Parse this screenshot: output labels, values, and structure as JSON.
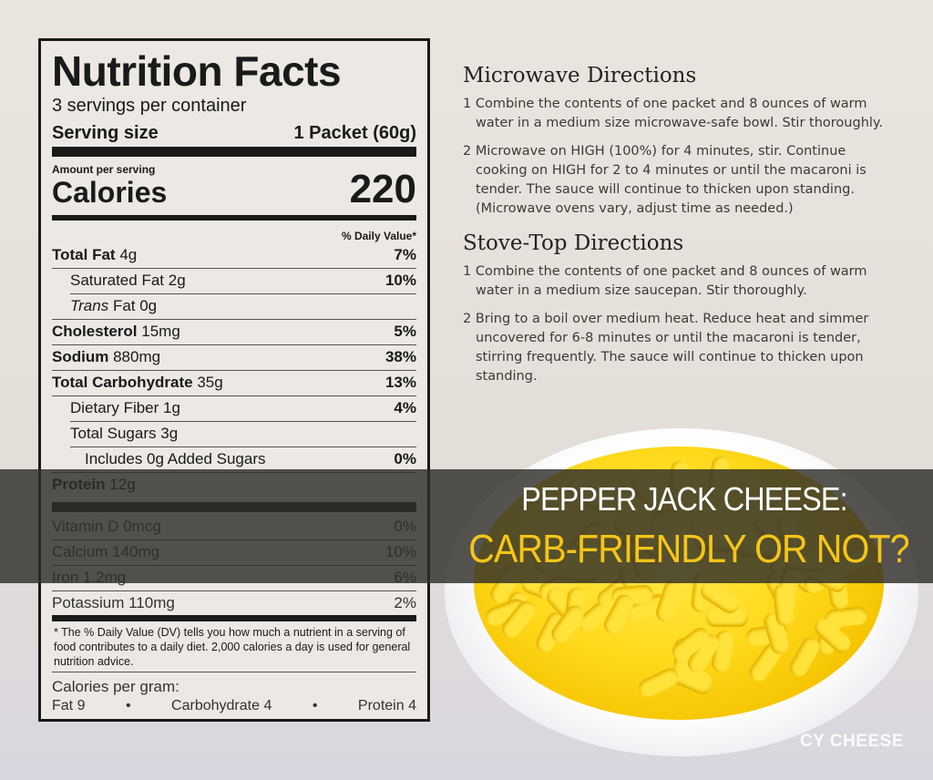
{
  "title": {
    "line1": "PEPPER JACK CHEESE:",
    "line2": "CARB-FRIENDLY OR NOT?"
  },
  "colors": {
    "title_line1": "#ffffff",
    "title_line2": "#f5c518",
    "overlay": "#302e2a"
  },
  "watermark": "CY CHEESE",
  "label": {
    "heading": "Nutrition Facts",
    "servings": "3 servings per container",
    "serving_size_label": "Serving size",
    "serving_size_value": "1 Packet (60g)",
    "amount_per_serving": "Amount per serving",
    "calories_label": "Calories",
    "calories_value": "220",
    "dv_header": "% Daily Value*",
    "rows": [
      {
        "name": "Total Fat",
        "amount": "4g",
        "dv": "7%",
        "bold": true,
        "indent": 0
      },
      {
        "name": "Saturated Fat",
        "amount": "2g",
        "dv": "10%",
        "bold": false,
        "indent": 1
      },
      {
        "name": "Trans",
        "amount": "Fat 0g",
        "dv": "",
        "bold": false,
        "indent": 1,
        "italic": true
      },
      {
        "name": "Cholesterol",
        "amount": "15mg",
        "dv": "5%",
        "bold": true,
        "indent": 0
      },
      {
        "name": "Sodium",
        "amount": "880mg",
        "dv": "38%",
        "bold": true,
        "indent": 0
      },
      {
        "name": "Total Carbohydrate",
        "amount": "35g",
        "dv": "13%",
        "bold": true,
        "indent": 0
      },
      {
        "name": "Dietary Fiber",
        "amount": "1g",
        "dv": "4%",
        "bold": false,
        "indent": 1
      },
      {
        "name": "Total Sugars",
        "amount": "3g",
        "dv": "",
        "bold": false,
        "indent": 1
      },
      {
        "name": "Includes 0g Added Sugars",
        "amount": "",
        "dv": "0%",
        "bold": false,
        "indent": 2
      },
      {
        "name": "Protein",
        "amount": "12g",
        "dv": "",
        "bold": true,
        "indent": 0
      }
    ],
    "vitamins": [
      {
        "name": "Vitamin D 0mcg",
        "dv": "0%"
      },
      {
        "name": "Calcium 140mg",
        "dv": "10%"
      },
      {
        "name": "Iron 1.2mg",
        "dv": "6%"
      },
      {
        "name": "Potassium 110mg",
        "dv": "2%"
      }
    ],
    "footnote": "* The % Daily Value (DV) tells you how much a nutrient in a serving of food contributes to a daily diet. 2,000 calories a day is used for general nutrition advice.",
    "cal_per_gram": "Calories per gram:",
    "fat": "Fat 9",
    "carb": "Carbohydrate 4",
    "protein": "Protein 4",
    "bullet": "•"
  },
  "directions": {
    "microwave_title": "Microwave Directions",
    "microwave_steps": [
      "1 Combine the contents of one packet and 8 ounces of warm water in a medium size microwave-safe bowl. Stir thoroughly.",
      "2 Microwave on HIGH (100%) for 4 minutes, stir. Continue cooking on HIGH for 2 to 4 minutes or until the macaroni is tender. The sauce will continue to thicken upon standing. (Microwave ovens vary, adjust time as needed.)"
    ],
    "stove_title": "Stove-Top Directions",
    "stove_steps": [
      "1 Combine the contents of one packet and 8 ounces of warm water in a medium size saucepan. Stir thoroughly.",
      "2 Bring to a boil over medium heat. Reduce heat and simmer uncovered for 6-8 minutes or until the macaroni is tender, stirring frequently. The sauce will continue to thicken upon standing."
    ]
  }
}
